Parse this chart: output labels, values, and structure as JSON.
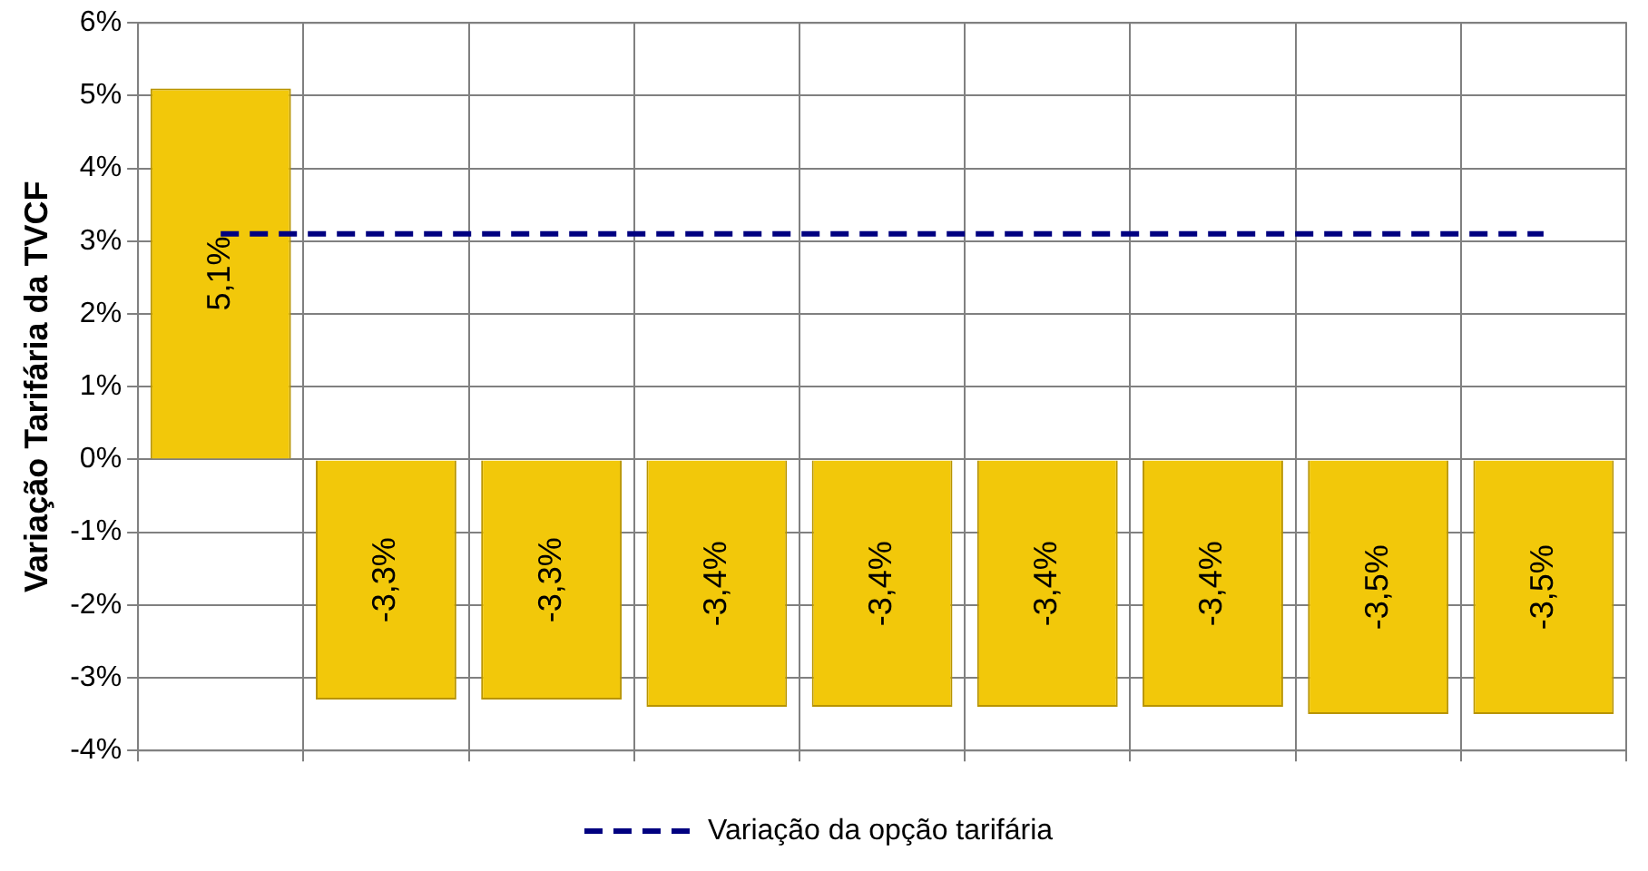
{
  "chart_data": {
    "type": "bar",
    "ylabel": "Variação Tarifária da TVCF",
    "categories": [
      null,
      null,
      null,
      null,
      null,
      null,
      null,
      null,
      null
    ],
    "series": [
      {
        "color": "#f2c80a",
        "values": [
          5.1,
          -3.3,
          -3.3,
          -3.4,
          -3.4,
          -3.4,
          -3.4,
          -3.5,
          -3.5
        ],
        "value_labels": [
          "5,1%",
          "-3,3%",
          "-3,3%",
          "-3,4%",
          "-3,4%",
          "-3,4%",
          "-3,4%",
          "-3,5%",
          "-3,5%"
        ]
      },
      {
        "type": "line",
        "name": "Variação da opção tarifária",
        "color": "#000080",
        "line_style": "dashed",
        "values": [
          3.1,
          3.1,
          3.1,
          3.1,
          3.1,
          3.1,
          3.1,
          3.1,
          3.1
        ]
      }
    ],
    "ylim": [
      -4,
      6
    ],
    "yticks": [
      {
        "value": -4,
        "label": "-4%"
      },
      {
        "value": -3,
        "label": "-3%"
      },
      {
        "value": -2,
        "label": "-2%"
      },
      {
        "value": -1,
        "label": "-1%"
      },
      {
        "value": 0,
        "label": "0%"
      },
      {
        "value": 1,
        "label": "1%"
      },
      {
        "value": 2,
        "label": "2%"
      },
      {
        "value": 3,
        "label": "3%"
      },
      {
        "value": 4,
        "label": "4%"
      },
      {
        "value": 5,
        "label": "5%"
      },
      {
        "value": 6,
        "label": "6%"
      }
    ],
    "grid": true,
    "legend": "bottom"
  }
}
